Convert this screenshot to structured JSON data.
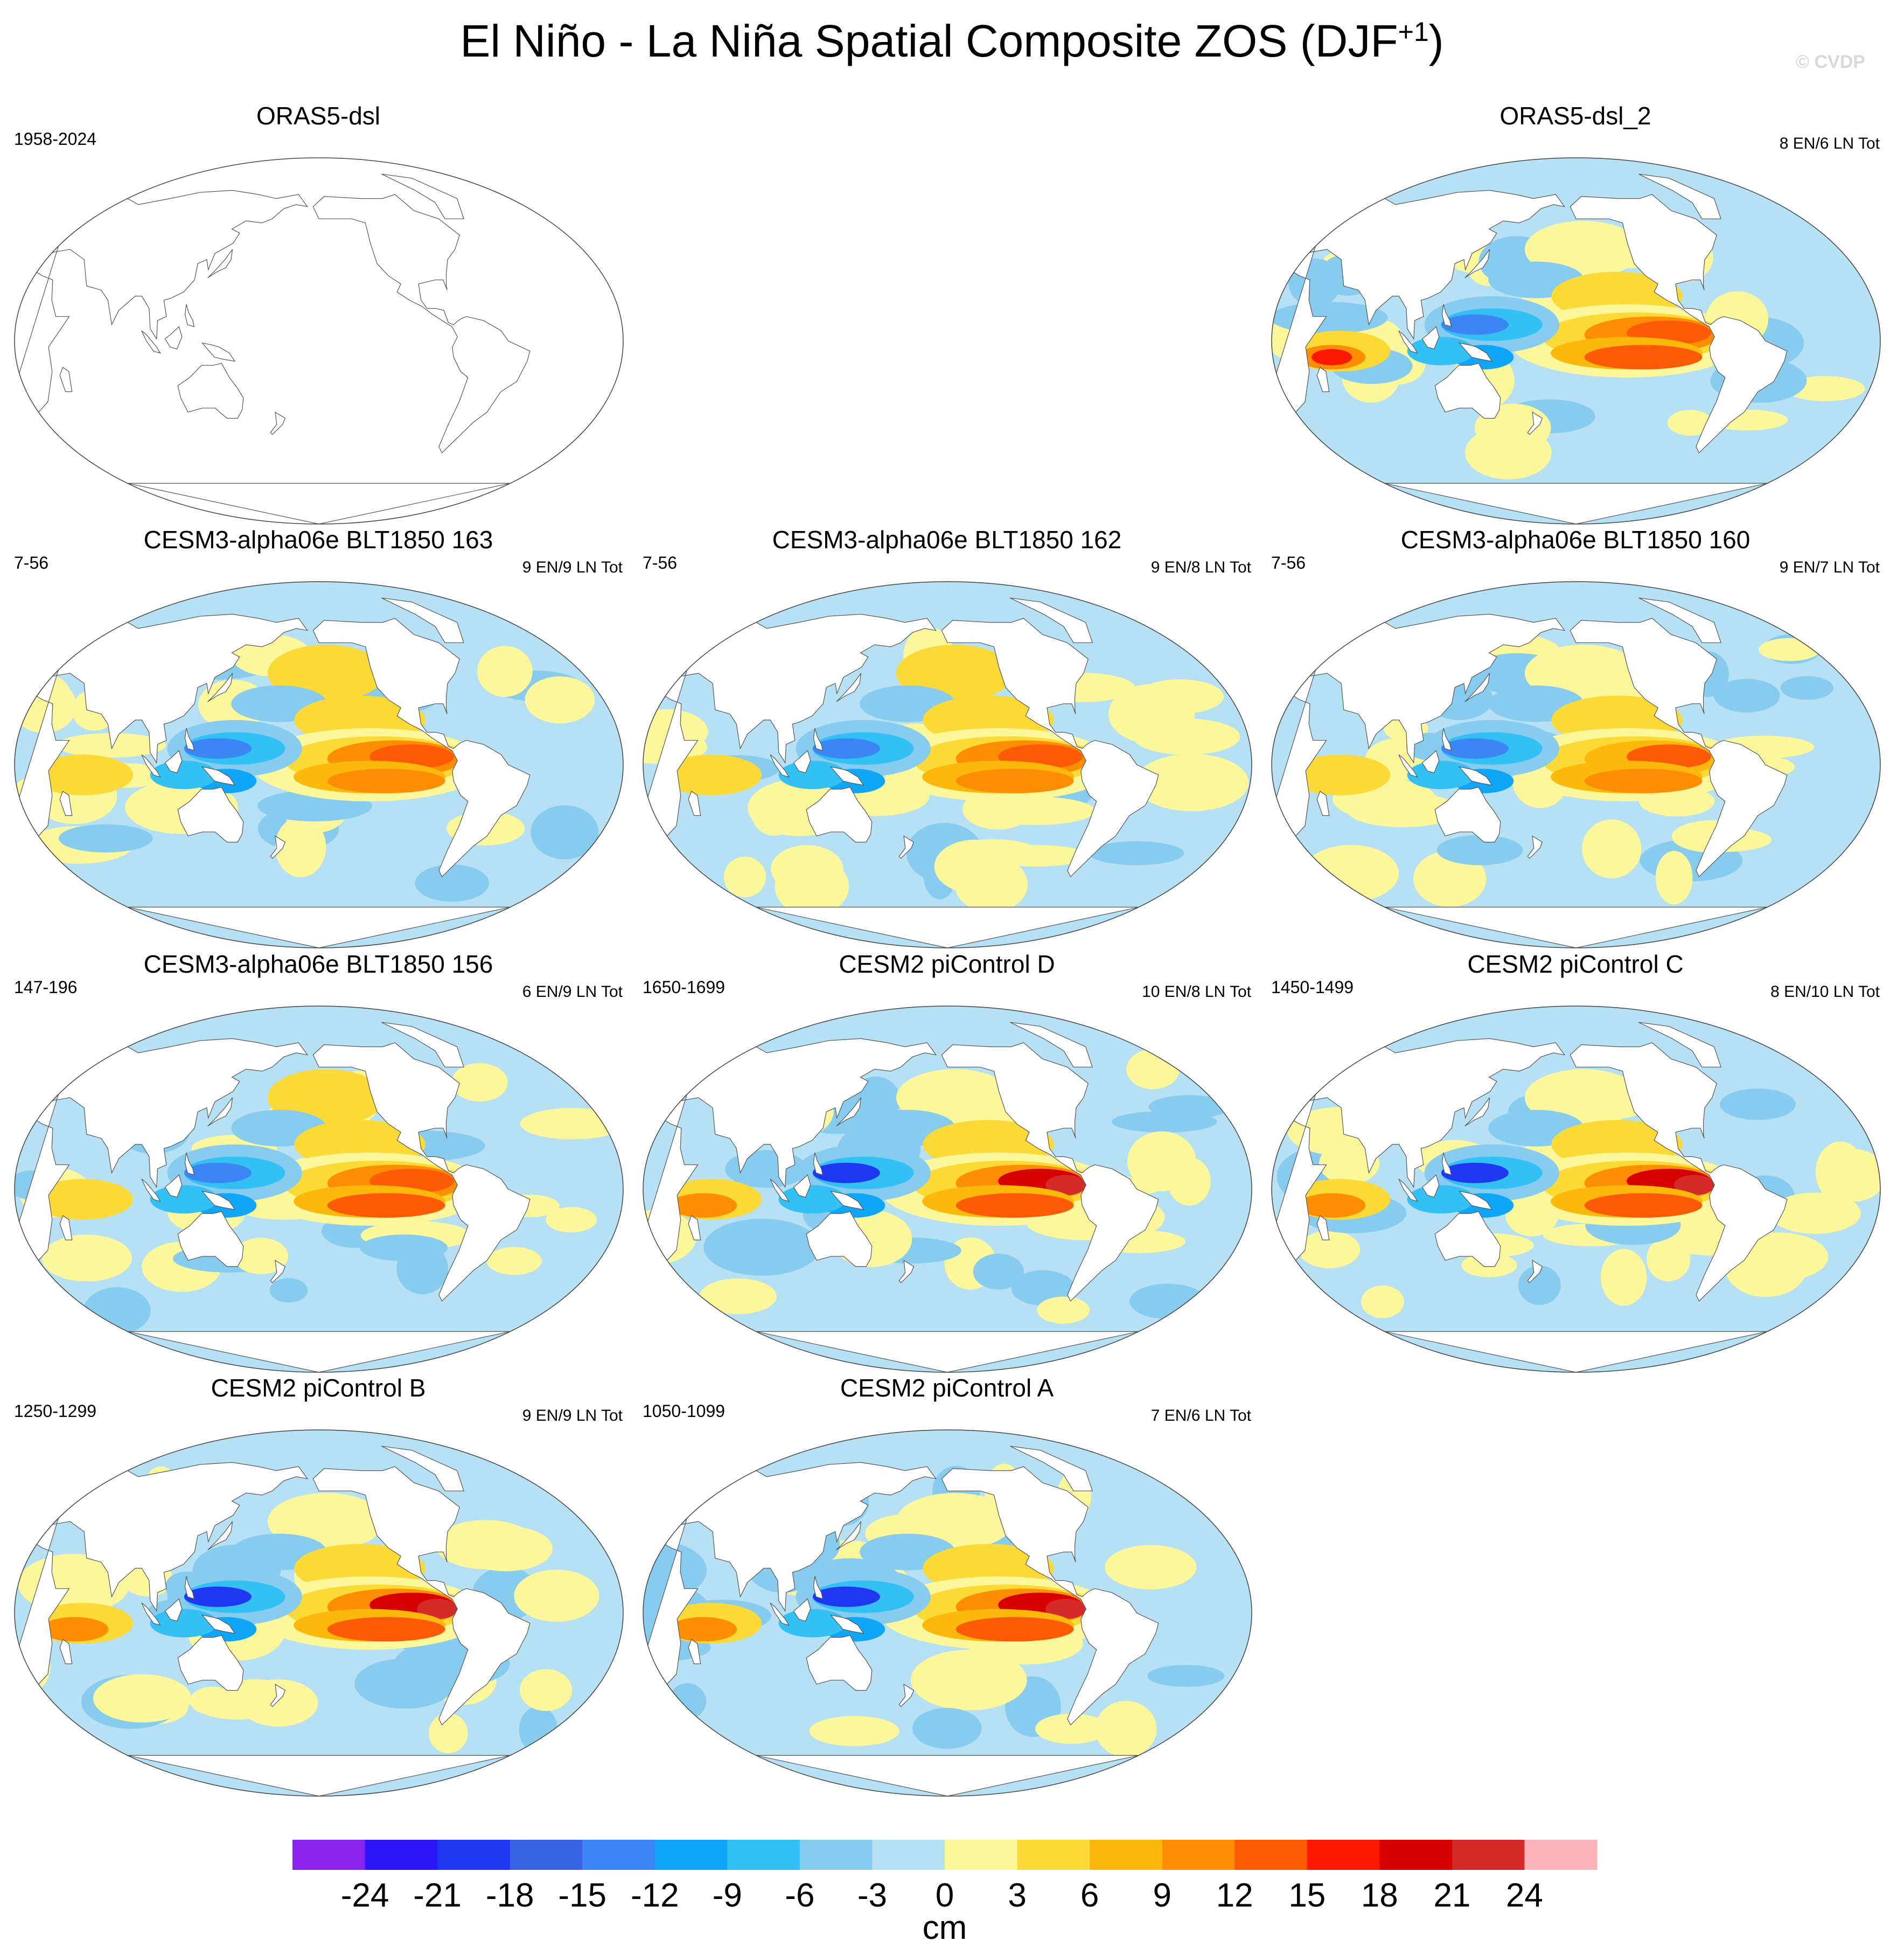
{
  "chart_data": {
    "type": "heatmap",
    "title": "El Niño - La Niña Spatial Composite ZOS (DJF",
    "title_superscript": "+1",
    "credit": "© CVDP",
    "colorbar": {
      "label": "cm",
      "ticks": [
        "-24",
        "-21",
        "-18",
        "-15",
        "-12",
        "-9",
        "-6",
        "-3",
        "0",
        "3",
        "6",
        "9",
        "12",
        "15",
        "18",
        "21",
        "24"
      ],
      "colors": [
        "#8b23ef",
        "#2c16f5",
        "#1f37f0",
        "#3a63e6",
        "#3b86f2",
        "#10a6f7",
        "#33c0f5",
        "#87cbef",
        "#b6e0f4",
        "#fdf79c",
        "#fbd936",
        "#fdb80c",
        "#fd8d03",
        "#fc5a05",
        "#fc1800",
        "#d70000",
        "#d42a2a",
        "#fdb4bb"
      ]
    },
    "panels": [
      {
        "title": "ORAS5-dsl",
        "period": "1958-2024",
        "counts": "",
        "has_data": false,
        "pattern": {
          "enso": 0,
          "indian": 0,
          "northpac": 0
        }
      },
      {
        "title": "ORAS5-dsl_2",
        "period": "",
        "counts": "8 EN/6 LN Tot",
        "has_data": true,
        "pattern": {
          "enso": 0.8,
          "indian": 1.0,
          "northpac": 0.4
        }
      },
      {
        "title": "CESM3-alpha06e BLT1850 163",
        "period": "7-56",
        "counts": "9 EN/9 LN Tot",
        "has_data": true,
        "pattern": {
          "enso": 0.62,
          "indian": 0.2,
          "northpac": 0.45
        }
      },
      {
        "title": "CESM3-alpha06e BLT1850 162",
        "period": "7-56",
        "counts": "9 EN/8 LN Tot",
        "has_data": true,
        "pattern": {
          "enso": 0.66,
          "indian": 0.25,
          "northpac": 0.5
        }
      },
      {
        "title": "CESM3-alpha06e BLT1850 160",
        "period": "7-56",
        "counts": "9 EN/7 LN Tot",
        "has_data": true,
        "pattern": {
          "enso": 0.58,
          "indian": 0.2,
          "northpac": 0.4
        }
      },
      {
        "title": "CESM3-alpha06e BLT1850 156",
        "period": "147-196",
        "counts": "6 EN/9 LN Tot",
        "has_data": true,
        "pattern": {
          "enso": 0.72,
          "indian": 0.3,
          "northpac": 0.5
        }
      },
      {
        "title": "CESM2 piControl D",
        "period": "1650-1699",
        "counts": "10 EN/8 LN Tot",
        "has_data": true,
        "pattern": {
          "enso": 0.9,
          "indian": 0.55,
          "northpac": 0.3
        }
      },
      {
        "title": "CESM2 piControl C",
        "period": "1450-1499",
        "counts": "8 EN/10 LN Tot",
        "has_data": true,
        "pattern": {
          "enso": 0.86,
          "indian": 0.5,
          "northpac": 0.3
        }
      },
      {
        "title": "CESM2 piControl B",
        "period": "1250-1299",
        "counts": "9 EN/9 LN Tot",
        "has_data": true,
        "pattern": {
          "enso": 0.9,
          "indian": 0.45,
          "northpac": 0.25
        }
      },
      {
        "title": "CESM2 piControl A",
        "period": "1050-1099",
        "counts": "7 EN/6 LN Tot",
        "has_data": true,
        "pattern": {
          "enso": 0.9,
          "indian": 0.45,
          "northpac": 0.25
        }
      }
    ]
  }
}
